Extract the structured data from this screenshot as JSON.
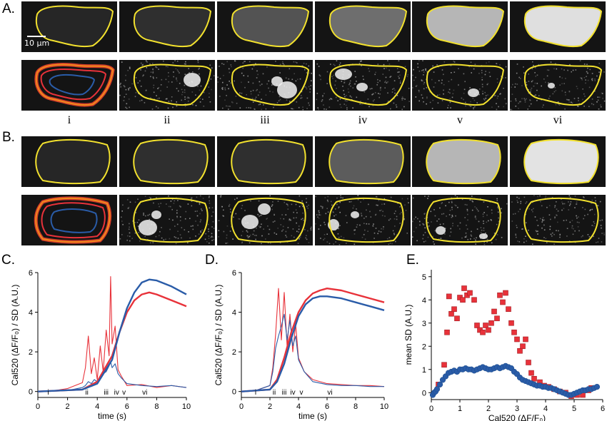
{
  "figure": {
    "panel_a_label": "A.",
    "panel_b_label": "B.",
    "panel_c_label": "C.",
    "panel_d_label": "D.",
    "panel_e_label": "E.",
    "scale_bar_label": "10 µm",
    "stage_labels": [
      "i",
      "ii",
      "iii",
      "iv",
      "v",
      "vi"
    ],
    "colors": {
      "red": "#e8323a",
      "blue": "#2a5ca8",
      "yellow": "#f2e12e",
      "orange": "#f08a1c",
      "marker_blue_edge": "#1f4f8f"
    },
    "panel_a_top_brightness": [
      0.08,
      0.12,
      0.28,
      0.4,
      0.72,
      0.9
    ],
    "panel_b_top_brightness": [
      0.08,
      0.12,
      0.12,
      0.32,
      0.72,
      0.92
    ]
  },
  "chart_data": [
    {
      "type": "line",
      "panel": "C.",
      "xlabel": "time (s)",
      "ylabel": "Cal520 (ΔF/F₀) / SD (A.U.)",
      "xlim": [
        0,
        10
      ],
      "ylim": [
        -0.3,
        6
      ],
      "xticks": [
        0,
        2,
        4,
        6,
        8,
        10
      ],
      "yticks": [
        0,
        2,
        4,
        6
      ],
      "stage_markers": [
        {
          "label": "i",
          "x": 0.7
        },
        {
          "label": "ii",
          "x": 3.3
        },
        {
          "label": "iii",
          "x": 4.6
        },
        {
          "label": "iv",
          "x": 5.3
        },
        {
          "label": "v",
          "x": 5.8
        },
        {
          "label": "vi",
          "x": 7.2
        }
      ],
      "series": [
        {
          "color": "red",
          "x": [
            0,
            1,
            2,
            3,
            3.2,
            3.4,
            3.6,
            3.8,
            4.0,
            4.2,
            4.4,
            4.6,
            4.8,
            4.9,
            5.0,
            5.2,
            5.4,
            5.6,
            6,
            7,
            8,
            9,
            10
          ],
          "y": [
            0,
            0.03,
            0.15,
            0.45,
            1.2,
            2.8,
            0.9,
            1.7,
            0.6,
            2.3,
            1.0,
            3.1,
            1.8,
            5.8,
            2.4,
            3.3,
            1.1,
            0.8,
            0.3,
            0.35,
            0.2,
            0.3,
            0.2
          ]
        },
        {
          "color": "blue",
          "x": [
            0,
            1,
            2,
            3,
            3.2,
            3.4,
            3.6,
            3.8,
            4.0,
            4.2,
            4.4,
            4.6,
            4.8,
            4.9,
            5.0,
            5.2,
            5.4,
            5.6,
            6,
            7,
            8,
            9,
            10
          ],
          "y": [
            0,
            0.02,
            0.05,
            0.2,
            0.3,
            0.5,
            0.4,
            0.6,
            0.5,
            0.7,
            0.9,
            1.0,
            1.3,
            1.5,
            1.2,
            1.4,
            0.9,
            0.7,
            0.4,
            0.3,
            0.25,
            0.3,
            0.2
          ]
        },
        {
          "color": "red",
          "x": [
            0,
            3,
            4,
            5,
            5.5,
            6,
            6.5,
            7,
            7.5,
            8,
            9,
            10
          ],
          "y": [
            0,
            0.1,
            0.5,
            1.8,
            3.0,
            4.0,
            4.6,
            4.9,
            5.0,
            4.9,
            4.6,
            4.3
          ]
        },
        {
          "color": "blue",
          "x": [
            0,
            3,
            4,
            5,
            5.5,
            6,
            6.5,
            7,
            7.5,
            8,
            9,
            10
          ],
          "y": [
            0,
            0.1,
            0.4,
            1.6,
            3.0,
            4.2,
            5.0,
            5.5,
            5.65,
            5.6,
            5.3,
            4.9
          ]
        }
      ]
    },
    {
      "type": "line",
      "panel": "D.",
      "xlabel": "time (s)",
      "ylabel": "Cal520 (ΔF/F₀) / SD (A.U.)",
      "xlim": [
        0,
        10
      ],
      "ylim": [
        -0.3,
        6
      ],
      "xticks": [
        0,
        2,
        4,
        6,
        8,
        10
      ],
      "yticks": [
        0,
        2,
        4,
        6
      ],
      "stage_markers": [
        {
          "label": "i",
          "x": 1.0
        },
        {
          "label": "ii",
          "x": 2.3
        },
        {
          "label": "iii",
          "x": 3.0
        },
        {
          "label": "iv",
          "x": 3.6
        },
        {
          "label": "v",
          "x": 4.2
        },
        {
          "label": "vi",
          "x": 6.2
        }
      ],
      "series": [
        {
          "color": "red",
          "x": [
            0,
            1,
            2,
            2.2,
            2.4,
            2.6,
            2.8,
            3.0,
            3.2,
            3.4,
            3.6,
            3.8,
            4.0,
            4.4,
            5,
            6,
            7,
            8,
            9,
            10
          ],
          "y": [
            0,
            0.05,
            0.3,
            1.2,
            2.9,
            5.2,
            2.6,
            5.0,
            2.3,
            3.9,
            2.0,
            3.4,
            1.7,
            1.0,
            0.6,
            0.4,
            0.35,
            0.3,
            0.3,
            0.25
          ]
        },
        {
          "color": "blue",
          "x": [
            0,
            1,
            2,
            2.2,
            2.4,
            2.6,
            2.8,
            3.0,
            3.2,
            3.4,
            3.6,
            3.8,
            4.0,
            4.4,
            5,
            6,
            7,
            8,
            9,
            10
          ],
          "y": [
            0,
            0.05,
            0.3,
            1.0,
            2.2,
            2.8,
            3.3,
            3.9,
            2.6,
            3.6,
            2.3,
            2.8,
            1.6,
            1.0,
            0.5,
            0.35,
            0.3,
            0.3,
            0.25,
            0.25
          ]
        },
        {
          "color": "red",
          "x": [
            0,
            2,
            2.5,
            3,
            3.5,
            4,
            4.5,
            5,
            5.5,
            6,
            7,
            8,
            9,
            10
          ],
          "y": [
            0,
            0.1,
            0.6,
            1.7,
            3.0,
            4.0,
            4.6,
            4.95,
            5.1,
            5.2,
            5.1,
            4.9,
            4.7,
            4.5
          ]
        },
        {
          "color": "blue",
          "x": [
            0,
            2,
            2.5,
            3,
            3.5,
            4,
            4.5,
            5,
            5.5,
            6,
            7,
            8,
            9,
            10
          ],
          "y": [
            0,
            0.1,
            0.5,
            1.4,
            2.7,
            3.8,
            4.4,
            4.7,
            4.8,
            4.8,
            4.7,
            4.5,
            4.3,
            4.1
          ]
        }
      ]
    },
    {
      "type": "scatter",
      "panel": "E.",
      "xlabel": "Cal520 (ΔF/F₀)",
      "ylabel": "mean SD (A.U.)",
      "xlim": [
        0,
        6
      ],
      "ylim": [
        -0.3,
        5.3
      ],
      "xticks": [
        0,
        1,
        2,
        3,
        4,
        5,
        6
      ],
      "yticks": [
        0,
        1,
        2,
        3,
        4,
        5
      ],
      "series": [
        {
          "color": "red",
          "marker": "square",
          "x": [
            0.25,
            0.45,
            0.55,
            0.62,
            0.7,
            0.8,
            0.9,
            1.0,
            1.1,
            1.15,
            1.25,
            1.35,
            1.5,
            1.6,
            1.7,
            1.8,
            1.9,
            2.0,
            2.1,
            2.2,
            2.3,
            2.4,
            2.5,
            2.6,
            2.7,
            2.8,
            2.9,
            3.0,
            3.1,
            3.2,
            3.3,
            3.4,
            3.5,
            3.6,
            3.8,
            3.95,
            4.1,
            4.3,
            4.5,
            4.7,
            4.9,
            5.1,
            5.3,
            5.5,
            5.6
          ],
          "y": [
            0.35,
            1.2,
            2.6,
            4.15,
            3.4,
            3.6,
            3.2,
            4.1,
            4.0,
            4.5,
            4.2,
            4.3,
            4.0,
            2.9,
            2.7,
            2.6,
            2.9,
            2.7,
            3.0,
            3.5,
            3.2,
            4.2,
            3.9,
            4.3,
            3.6,
            3.0,
            2.6,
            2.3,
            1.8,
            2.0,
            2.3,
            1.3,
            0.85,
            0.6,
            0.45,
            0.3,
            0.25,
            0.15,
            0.05,
            0.0,
            -0.15,
            -0.1,
            -0.1,
            0.1,
            0.2
          ]
        },
        {
          "color": "blue",
          "marker": "circle",
          "x": [
            0.05,
            0.1,
            0.15,
            0.2,
            0.3,
            0.4,
            0.5,
            0.6,
            0.7,
            0.8,
            0.9,
            1.0,
            1.1,
            1.2,
            1.3,
            1.4,
            1.5,
            1.6,
            1.7,
            1.8,
            1.9,
            2.0,
            2.1,
            2.2,
            2.3,
            2.4,
            2.5,
            2.6,
            2.7,
            2.8,
            2.9,
            3.0,
            3.1,
            3.2,
            3.3,
            3.4,
            3.5,
            3.6,
            3.7,
            3.8,
            3.9,
            4.0,
            4.1,
            4.2,
            4.3,
            4.4,
            4.5,
            4.6,
            4.7,
            4.8,
            4.9,
            5.0,
            5.1,
            5.2,
            5.3,
            5.4,
            5.5,
            5.6,
            5.7,
            5.8
          ],
          "y": [
            -0.1,
            0.0,
            0.05,
            0.15,
            0.35,
            0.55,
            0.7,
            0.85,
            0.9,
            0.95,
            0.9,
            1.0,
            1.0,
            1.05,
            1.0,
            1.0,
            0.95,
            1.0,
            1.05,
            1.1,
            1.05,
            1.0,
            1.0,
            1.05,
            1.1,
            1.05,
            1.1,
            1.15,
            1.1,
            1.05,
            0.9,
            0.8,
            0.65,
            0.55,
            0.5,
            0.45,
            0.4,
            0.35,
            0.3,
            0.3,
            0.25,
            0.25,
            0.2,
            0.2,
            0.15,
            0.1,
            0.05,
            0.0,
            -0.05,
            -0.1,
            -0.1,
            -0.05,
            0.0,
            0.05,
            0.1,
            0.1,
            0.15,
            0.15,
            0.2,
            0.25
          ]
        }
      ]
    }
  ]
}
